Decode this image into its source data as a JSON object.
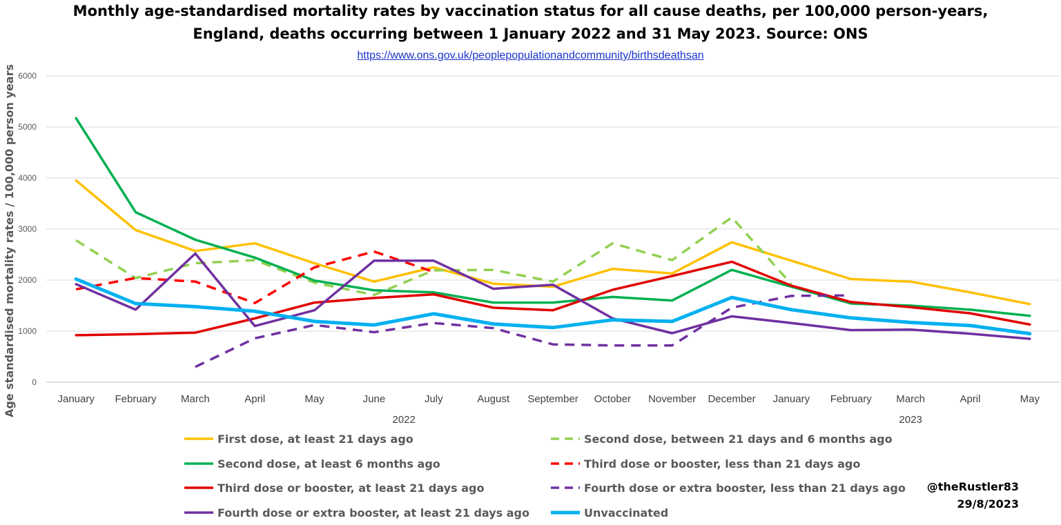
{
  "header": {
    "title_line1": "Monthly age-standardised mortality rates by vaccination status for all cause deaths, per 100,000 person-years,",
    "title_line2": "England, deaths occurring between 1 January 2022 and 31 May 2023. Source: ONS",
    "source_link": "https://www.ons.gov.uk/peoplepopulationandcommunity/birthsdeathsan"
  },
  "credit": {
    "handle": "@theRustler83",
    "date": "29/8/2023"
  },
  "chart_data": {
    "type": "line",
    "title": "Monthly age-standardised mortality rates by vaccination status for all cause deaths, per 100,000 person-years, England, deaths occurring between 1 January 2022 and 31 May 2023. Source: ONS",
    "xlabel": "",
    "ylabel": "Age standardised mortality rates / 100,000 person years",
    "categories": [
      "January",
      "February",
      "March",
      "April",
      "May",
      "June",
      "July",
      "August",
      "September",
      "October",
      "November",
      "December",
      "January",
      "February",
      "March",
      "April",
      "May"
    ],
    "year_groups": [
      {
        "label": "2022",
        "start": 0,
        "end": 11
      },
      {
        "label": "2023",
        "start": 12,
        "end": 16
      }
    ],
    "ylim": [
      0,
      6000
    ],
    "yticks": [
      0,
      1000,
      2000,
      3000,
      4000,
      5000,
      6000
    ],
    "grid": true,
    "legend_position": "bottom",
    "series": [
      {
        "name": "First dose, at least 21 days ago",
        "color": "#FFC000",
        "dashed": false,
        "values": [
          3950,
          2980,
          2570,
          2720,
          2330,
          1970,
          2250,
          1930,
          1870,
          2220,
          2130,
          2740,
          2380,
          2020,
          1970,
          1760,
          1530
        ]
      },
      {
        "name": "Second dose, between 21 days and 6 months ago",
        "color": "#92D050",
        "dashed": true,
        "values": [
          2780,
          2040,
          2330,
          2390,
          1950,
          1710,
          2190,
          2200,
          1970,
          2720,
          2390,
          3230,
          1920,
          null,
          null,
          null,
          null
        ]
      },
      {
        "name": "Second dose, at least 6 months ago",
        "color": "#00B050",
        "dashed": false,
        "values": [
          5170,
          3330,
          2790,
          2440,
          1990,
          1800,
          1760,
          1560,
          1560,
          1670,
          1600,
          2200,
          1870,
          1540,
          1500,
          1420,
          1300
        ]
      },
      {
        "name": "Third dose or booster, less than 21 days ago",
        "color": "#FF0000",
        "dashed": true,
        "values": [
          1820,
          2040,
          1970,
          1550,
          2250,
          2560,
          2160,
          null,
          null,
          null,
          null,
          null,
          null,
          null,
          null,
          null,
          null
        ]
      },
      {
        "name": "Third dose or booster, at least 21 days ago",
        "color": "#E00000",
        "dashed": false,
        "values": [
          920,
          940,
          970,
          1250,
          1560,
          1650,
          1720,
          1460,
          1410,
          1810,
          2080,
          2360,
          1890,
          1570,
          1470,
          1350,
          1130
        ]
      },
      {
        "name": "Fourth dose or extra booster, less than 21 days ago",
        "color": "#7030A0",
        "dashed": true,
        "values": [
          null,
          null,
          300,
          860,
          1120,
          980,
          1160,
          1060,
          740,
          720,
          720,
          1460,
          1690,
          1700,
          null,
          null,
          null
        ]
      },
      {
        "name": "Fourth dose or extra booster, at least 21 days ago",
        "color": "#7030A0",
        "dashed": false,
        "values": [
          1920,
          1420,
          2520,
          1100,
          1410,
          2380,
          2380,
          1830,
          1910,
          1250,
          960,
          1290,
          1160,
          1020,
          1030,
          950,
          850
        ]
      },
      {
        "name": "Unvaccinated",
        "color": "#00B0F0",
        "dashed": false,
        "values": [
          2020,
          1540,
          1480,
          1390,
          1190,
          1120,
          1340,
          1140,
          1070,
          1220,
          1190,
          1660,
          1420,
          1260,
          1170,
          1110,
          950
        ]
      }
    ]
  }
}
